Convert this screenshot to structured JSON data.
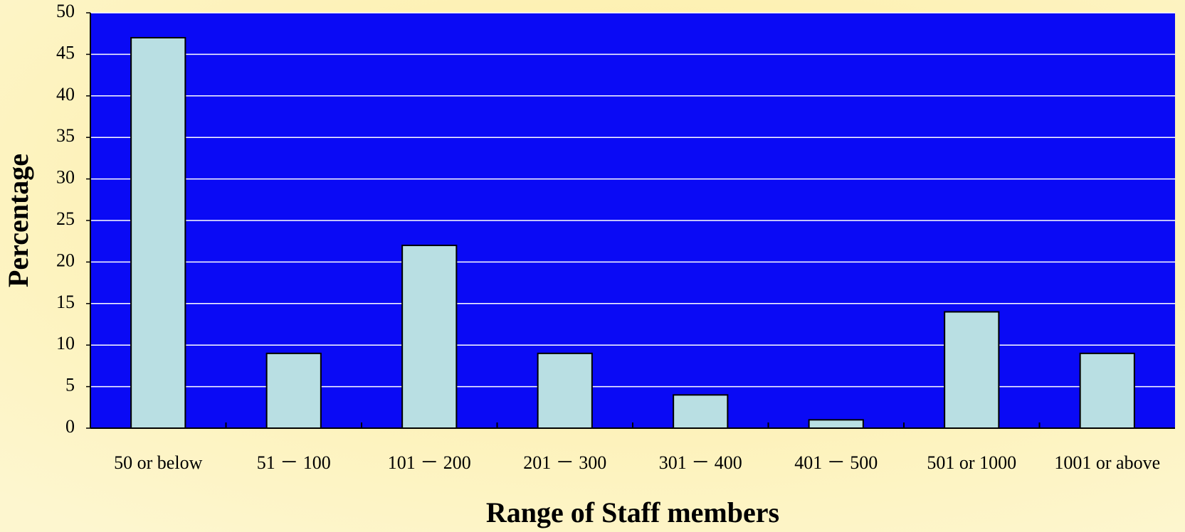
{
  "chart_data": {
    "type": "bar",
    "categories": [
      "50 or below",
      "51 － 100",
      "101 － 200",
      "201 － 300",
      "301 － 400",
      "401 － 500",
      "501 or 1000",
      "1001 or above"
    ],
    "values": [
      47,
      9,
      22,
      9,
      4,
      1,
      14,
      9
    ],
    "color": "#b9dfe3",
    "plot_background": "#0a0af5",
    "ylim": [
      0,
      50
    ],
    "yticks": [
      0,
      5,
      10,
      15,
      20,
      25,
      30,
      35,
      40,
      45,
      50
    ],
    "grid": true,
    "x_label": "Range of Staff members",
    "y_label": "Percentage"
  }
}
